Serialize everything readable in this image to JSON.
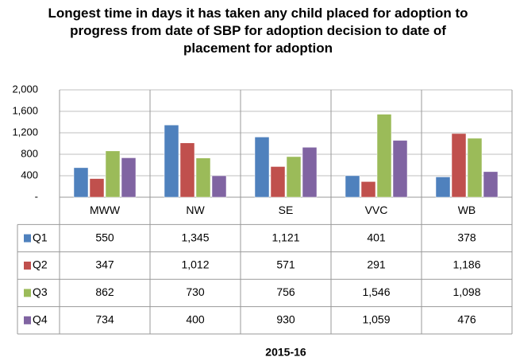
{
  "chart_data": {
    "type": "bar",
    "title": "Longest time in days it has taken any child placed for adoption to progress from date of SBP for adoption decision to date of placement for adoption",
    "x_label": "2015-16",
    "categories": [
      "MWW",
      "NW",
      "SE",
      "VVC",
      "WB"
    ],
    "series": [
      {
        "name": "Q1",
        "color": "#4f81bd",
        "values": [
          550,
          1345,
          1121,
          401,
          378
        ],
        "value_labels": [
          "550",
          "1,345",
          "1,121",
          "401",
          "378"
        ]
      },
      {
        "name": "Q2",
        "color": "#c0504d",
        "values": [
          347,
          1012,
          571,
          291,
          1186
        ],
        "value_labels": [
          "347",
          "1,012",
          "571",
          "291",
          "1,186"
        ]
      },
      {
        "name": "Q3",
        "color": "#9bbb59",
        "values": [
          862,
          730,
          756,
          1546,
          1098
        ],
        "value_labels": [
          "862",
          "730",
          "756",
          "1,546",
          "1,098"
        ]
      },
      {
        "name": "Q4",
        "color": "#8064a2",
        "values": [
          734,
          400,
          930,
          1059,
          476
        ],
        "value_labels": [
          "734",
          "400",
          "930",
          "1,059",
          "476"
        ]
      }
    ],
    "ylim": [
      0,
      2000
    ],
    "yticks": [
      {
        "value": 0,
        "label": "-"
      },
      400,
      800,
      {
        "value": 1200,
        "label": "1,200"
      },
      {
        "value": 1600,
        "label": "1,600"
      },
      {
        "value": 2000,
        "label": "2,000"
      }
    ],
    "grid": true
  }
}
